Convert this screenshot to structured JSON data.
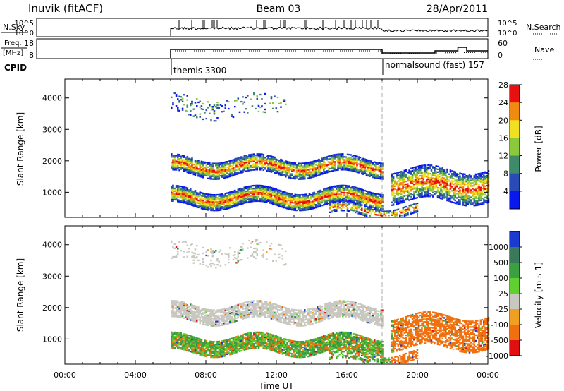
{
  "header": {
    "station": "Inuvik  (fitACF)",
    "beam": "Beam 03",
    "date": "28/Apr/2011"
  },
  "top_panels": {
    "nsky_label": "N.Sky",
    "nsky_ticks": [
      "10^5",
      "10^0"
    ],
    "nsearch_label": "N.Search",
    "nsearch_ticks": [
      "10^5",
      "10^0"
    ],
    "freq_label_1": "Freq.",
    "freq_label_2": "[MHz]",
    "freq_ticks": [
      "18",
      "8"
    ],
    "nave_label": "Nave",
    "nave_ticks": [
      "60",
      "0"
    ],
    "cpid_label": "CPID",
    "cpid_entries": [
      {
        "text": "themis 3300",
        "start_hour": 6.0
      },
      {
        "text": "normalsound (fast) 157",
        "start_hour": 18.0
      }
    ]
  },
  "chart_data": [
    {
      "type": "heatmap",
      "title": "",
      "ylabel": "Slant Range [km]",
      "xlabel": "",
      "xlim": [
        0,
        24
      ],
      "ylim": [
        200,
        4600
      ],
      "yticks": [
        1000,
        2000,
        3000,
        4000
      ],
      "colorbar": {
        "label": "Power [dB]",
        "ticks": [
          "4",
          "8",
          "12",
          "16",
          "20",
          "24",
          "28"
        ],
        "colors": [
          "#0a18f0",
          "#2a4ab8",
          "#3e8a6a",
          "#8cc83c",
          "#f0e020",
          "#f08a10",
          "#e81010"
        ]
      }
    },
    {
      "type": "heatmap",
      "title": "",
      "ylabel": "Slant Range [km]",
      "xlabel": "Time UT",
      "xlim": [
        0,
        24
      ],
      "ylim": [
        200,
        4600
      ],
      "yticks": [
        1000,
        2000,
        3000,
        4000
      ],
      "xticks": [
        "00:00",
        "04:00",
        "08:00",
        "12:00",
        "16:00",
        "20:00",
        "00:00"
      ],
      "colorbar": {
        "label": "Velocity  [m s-1]",
        "ticks": [
          "1000",
          "500",
          "100",
          "25",
          "-25",
          "-100",
          "-500",
          "-1000"
        ],
        "colors": [
          "#1a3ad0",
          "#3a7a5a",
          "#3aa040",
          "#60d030",
          "#c8c8c0",
          "#f0a020",
          "#f07010",
          "#e01010"
        ]
      }
    }
  ]
}
